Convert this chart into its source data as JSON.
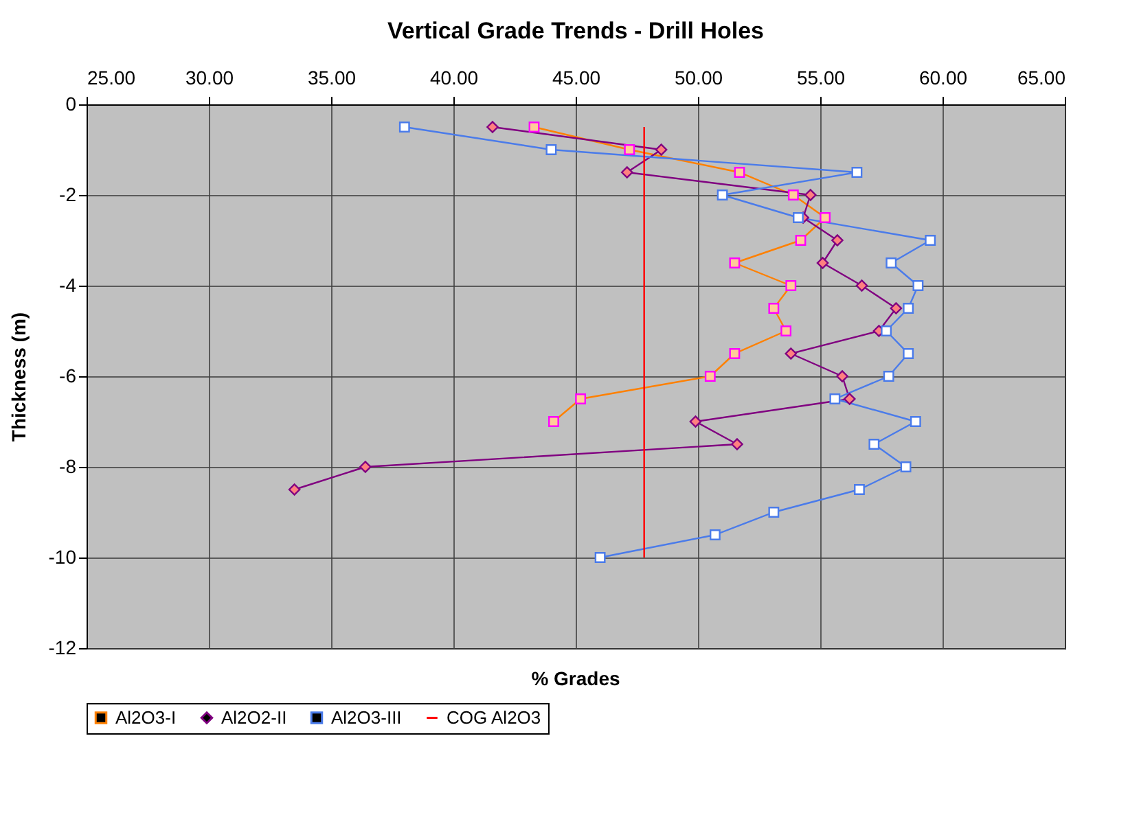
{
  "chart_data": {
    "type": "line",
    "title": "Vertical Grade Trends - Drill Holes",
    "xlabel": "% Grades",
    "ylabel": "Thickness (m)",
    "xlim": [
      25,
      65
    ],
    "xticks": [
      {
        "value": 25,
        "label": "25.00"
      },
      {
        "value": 30,
        "label": "30.00"
      },
      {
        "value": 35,
        "label": "35.00"
      },
      {
        "value": 40,
        "label": "40.00"
      },
      {
        "value": 45,
        "label": "45.00"
      },
      {
        "value": 50,
        "label": "50.00"
      },
      {
        "value": 55,
        "label": "55.00"
      },
      {
        "value": 60,
        "label": "60.00"
      },
      {
        "value": 65,
        "label": "65.00"
      }
    ],
    "ylim": [
      -12,
      0
    ],
    "yticks": [
      -12,
      -10,
      -8,
      -6,
      -4,
      -2,
      0
    ],
    "grid": true,
    "legend": "bottom",
    "series": [
      {
        "name": "Al2O3-I",
        "color": "#ff8000",
        "marker": "square",
        "x": [
          43.3,
          47.2,
          51.7,
          53.9,
          55.2,
          54.2,
          51.5,
          53.8,
          53.1,
          53.6,
          51.5,
          50.5,
          45.2,
          44.1
        ],
        "values": [
          -0.5,
          -1,
          -1.5,
          -2,
          -2.5,
          -3,
          -3.5,
          -4,
          -4.5,
          -5,
          -5.5,
          -6,
          -6.5,
          -7
        ]
      },
      {
        "name": "Al2O2-II",
        "color": "#800080",
        "marker": "diamond",
        "x": [
          41.6,
          48.5,
          47.1,
          54.6,
          54.3,
          55.7,
          55.1,
          56.7,
          58.1,
          57.4,
          53.8,
          55.9,
          56.2,
          49.9,
          51.6,
          36.4,
          33.5
        ],
        "values": [
          -0.5,
          -1,
          -1.5,
          -2,
          -2.5,
          -3,
          -3.5,
          -4,
          -4.5,
          -5,
          -5.5,
          -6,
          -6.5,
          -7,
          -7.5,
          -8,
          -8.5
        ]
      },
      {
        "name": "Al2O3-III",
        "color": "#4a7bea",
        "marker": "square",
        "x": [
          38.0,
          44.0,
          56.5,
          51.0,
          54.1,
          59.5,
          57.9,
          59.0,
          58.6,
          57.7,
          58.6,
          57.8,
          55.6,
          58.9,
          57.2,
          58.5,
          56.6,
          53.1,
          50.7,
          46.0
        ],
        "values": [
          -0.5,
          -1,
          -1.5,
          -2,
          -2.5,
          -3,
          -3.5,
          -4,
          -4.5,
          -5,
          -5.5,
          -6,
          -6.5,
          -7,
          -7.5,
          -8,
          -8.5,
          -9,
          -9.5,
          -10
        ]
      },
      {
        "name": "COG Al2O3",
        "color": "#ff0000",
        "marker": "none",
        "x": [
          47.8,
          47.8
        ],
        "values": [
          -0.5,
          -10
        ]
      }
    ]
  }
}
